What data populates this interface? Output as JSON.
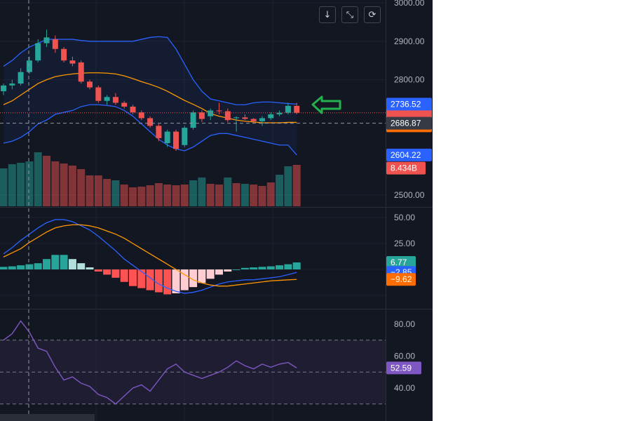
{
  "toolbar": {
    "down_icon": "↓",
    "collapse_icon": "⤡",
    "reset_icon": "⟳"
  },
  "colors": {
    "background": "#131722",
    "up": "#26a69a",
    "down": "#ef5350",
    "bb": "#2962ff",
    "ma": "#ff9800",
    "rsi": "#7e57c2",
    "rsi_badge": "#7e57c2",
    "arrow": "#22b14c"
  },
  "chart_data": [
    {
      "type": "candlestick",
      "panel": "price",
      "y_axis_ticks": [
        "3000.00",
        "2900.00",
        "2800.00",
        "2500.00"
      ],
      "ylim": [
        2500,
        3000
      ],
      "grid": true,
      "ohlc": [
        [
          2770,
          2790,
          2760,
          2785
        ],
        [
          2785,
          2800,
          2775,
          2790
        ],
        [
          2790,
          2830,
          2785,
          2820
        ],
        [
          2820,
          2860,
          2815,
          2850
        ],
        [
          2850,
          2905,
          2845,
          2895
        ],
        [
          2895,
          2930,
          2885,
          2910
        ],
        [
          2905,
          2915,
          2870,
          2880
        ],
        [
          2880,
          2885,
          2845,
          2850
        ],
        [
          2850,
          2860,
          2835,
          2842
        ],
        [
          2845,
          2850,
          2790,
          2795
        ],
        [
          2795,
          2800,
          2775,
          2780
        ],
        [
          2780,
          2785,
          2740,
          2745
        ],
        [
          2745,
          2760,
          2735,
          2755
        ],
        [
          2755,
          2765,
          2735,
          2740
        ],
        [
          2740,
          2745,
          2725,
          2730
        ],
        [
          2730,
          2735,
          2710,
          2715
        ],
        [
          2715,
          2720,
          2695,
          2700
        ],
        [
          2700,
          2705,
          2675,
          2680
        ],
        [
          2680,
          2685,
          2640,
          2648
        ],
        [
          2635,
          2670,
          2625,
          2665
        ],
        [
          2665,
          2670,
          2615,
          2620
        ],
        [
          2630,
          2680,
          2625,
          2675
        ],
        [
          2675,
          2720,
          2670,
          2715
        ],
        [
          2715,
          2720,
          2690,
          2698
        ],
        [
          2705,
          2725,
          2695,
          2720
        ],
        [
          2720,
          2740,
          2710,
          2718
        ],
        [
          2718,
          2725,
          2690,
          2695
        ],
        [
          2700,
          2705,
          2665,
          2702
        ],
        [
          2702,
          2710,
          2695,
          2698
        ],
        [
          2698,
          2700,
          2688,
          2692
        ],
        [
          2692,
          2705,
          2680,
          2700
        ],
        [
          2700,
          2715,
          2695,
          2710
        ],
        [
          2710,
          2720,
          2705,
          2714
        ],
        [
          2714,
          2740,
          2710,
          2732
        ],
        [
          2732,
          2740,
          2710,
          2714
        ]
      ],
      "bollinger": {
        "upper": [
          2835,
          2850,
          2870,
          2885,
          2895,
          2905,
          2905,
          2905,
          2905,
          2902,
          2900,
          2900,
          2900,
          2900,
          2900,
          2900,
          2905,
          2910,
          2912,
          2910,
          2880,
          2840,
          2800,
          2770,
          2750,
          2745,
          2740,
          2735,
          2735,
          2740,
          2742,
          2742,
          2740,
          2738,
          2736.52
        ],
        "basis": [
          2735,
          2745,
          2760,
          2775,
          2790,
          2800,
          2808,
          2812,
          2815,
          2817,
          2818,
          2818,
          2817,
          2815,
          2810,
          2803,
          2795,
          2788,
          2780,
          2770,
          2758,
          2746,
          2736,
          2725,
          2712,
          2705,
          2700,
          2695,
          2692,
          2690,
          2688,
          2688,
          2688,
          2689,
          2689
        ],
        "lower": [
          2635,
          2640,
          2650,
          2665,
          2685,
          2695,
          2710,
          2715,
          2720,
          2730,
          2735,
          2735,
          2733,
          2730,
          2720,
          2705,
          2685,
          2665,
          2645,
          2630,
          2620,
          2615,
          2625,
          2640,
          2655,
          2660,
          2660,
          2655,
          2650,
          2645,
          2640,
          2635,
          2630,
          2630,
          2604.22
        ]
      },
      "volume_bull": [
        true,
        true,
        true,
        true,
        true,
        false,
        false,
        false,
        false,
        false,
        false,
        false,
        false,
        true,
        false,
        false,
        false,
        false,
        false,
        false,
        false,
        false,
        true,
        true,
        false,
        false,
        true,
        false,
        true,
        false,
        false,
        false,
        true,
        true,
        false
      ],
      "volume_values": [
        0.54,
        0.6,
        0.62,
        0.64,
        0.77,
        0.72,
        0.64,
        0.61,
        0.58,
        0.53,
        0.44,
        0.44,
        0.39,
        0.37,
        0.31,
        0.27,
        0.28,
        0.3,
        0.33,
        0.31,
        0.3,
        0.31,
        0.37,
        0.41,
        0.32,
        0.31,
        0.41,
        0.33,
        0.32,
        0.31,
        0.29,
        0.34,
        0.45,
        0.57,
        0.59
      ],
      "badges": [
        {
          "label": "2736.52",
          "value": 2736.52,
          "color": "#2962ff"
        },
        {
          "label": "2686.87",
          "value": 2686.87,
          "color": "#363a45"
        },
        {
          "label": "2604.22",
          "value": 2604.22,
          "color": "#2962ff"
        },
        {
          "label": "8.434B",
          "value": 2570,
          "color": "#ef5350"
        }
      ],
      "crosshair_price": 2686.87,
      "last_price": 2714
    },
    {
      "type": "bar",
      "panel": "macd",
      "y_axis_ticks": [
        "50.00",
        "25.00"
      ],
      "ylim": [
        -35,
        60
      ],
      "histogram": [
        2.5,
        3,
        4,
        5,
        6,
        10,
        14,
        14,
        10,
        6,
        2,
        -2,
        -5,
        -8,
        -12,
        -16,
        -18,
        -20,
        -22,
        -24,
        -23,
        -20,
        -17,
        -13,
        -9,
        -5,
        -2,
        0,
        1.5,
        2,
        2.5,
        3,
        4,
        5,
        6.77
      ],
      "macd_line": [
        15,
        21,
        28,
        34,
        40,
        45,
        48,
        48,
        46,
        42,
        38,
        32,
        25,
        18,
        10,
        4,
        -2,
        -8,
        -14,
        -18,
        -21,
        -23,
        -22,
        -20,
        -17,
        -14,
        -12,
        -11,
        -10,
        -10,
        -9,
        -8,
        -7,
        -5,
        -2.85
      ],
      "signal_line": [
        12,
        16,
        20,
        26,
        31,
        36,
        40,
        42,
        43,
        43,
        42,
        40,
        37,
        34,
        30,
        25,
        20,
        15,
        10,
        5,
        0,
        -5,
        -10,
        -13,
        -15,
        -16,
        -16,
        -15,
        -14,
        -13,
        -12,
        -11,
        -10.5,
        -10,
        -9.62
      ],
      "badges": [
        {
          "label": "6.77",
          "value": 6.77,
          "color": "#26a69a"
        },
        {
          "label": "−2.85",
          "value": -2.85,
          "color": "#2962ff"
        },
        {
          "label": "−9.62",
          "value": -9.62,
          "color": "#ff6d00"
        }
      ]
    },
    {
      "type": "line",
      "panel": "rsi",
      "y_axis_ticks": [
        "80.00",
        "60.00",
        "40.00"
      ],
      "ylim": [
        30,
        90
      ],
      "band": [
        30,
        70
      ],
      "midline": 50,
      "values": [
        70,
        74,
        82,
        75,
        65,
        63,
        53,
        45,
        47,
        43,
        41,
        36,
        34,
        30,
        35,
        40,
        42,
        38,
        45,
        52,
        55,
        50,
        48,
        46,
        48,
        50,
        53,
        57,
        54,
        52,
        55,
        53,
        55,
        56,
        52.59
      ],
      "badges": [
        {
          "label": "52.59",
          "value": 52.59,
          "color": "#7e57c2"
        }
      ]
    }
  ]
}
